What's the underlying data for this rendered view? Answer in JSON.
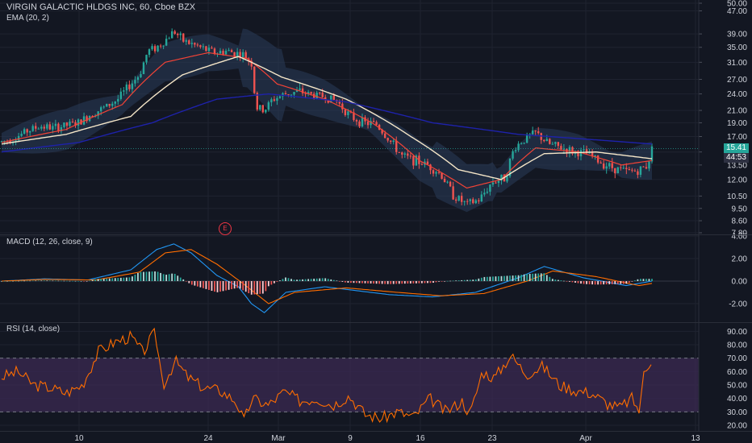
{
  "header": {
    "symbol_line": "VIRGIN GALACTIC HLDGS INC, 60, Cboe BZX",
    "ema_line": "EMA (20, 2)"
  },
  "macd_title": "MACD (12, 26, close, 9)",
  "rsi_title": "RSI (14, close)",
  "event_marker": "E",
  "last_price": {
    "value": "15.41",
    "countdown": "44:53"
  },
  "colors": {
    "background": "#131722",
    "up": "#26a69a",
    "down": "#ef5350",
    "ema_fast": "#f44336",
    "ema_slow": "#f5e6c8",
    "ema_long": "#1e22aa",
    "band_fill": "#2a3c5a",
    "macd_line": "#2196f3",
    "signal_line": "#ff6d00",
    "rsi_line": "#ff6d00",
    "rsi_band": "#3b2a52",
    "badge_price": "#26a69a",
    "badge_time": "#2e3142"
  },
  "chart_data": [
    {
      "type": "candlestick",
      "title": "VIRGIN GALACTIC HLDGS INC, 60, Cboe BZX",
      "scale": "log",
      "y_ticks": [
        "50.00",
        "47.00",
        "39.00",
        "35.00",
        "31.00",
        "27.00",
        "24.00",
        "21.00",
        "19.00",
        "17.00",
        "15.00",
        "13.50",
        "12.00",
        "10.50",
        "9.50",
        "8.60",
        "7.80"
      ],
      "x_ticks": [
        "10",
        "24",
        "Mar",
        "9",
        "16",
        "23",
        "Apr",
        "13"
      ],
      "ylim": [
        7.8,
        50
      ],
      "close_path": [
        {
          "x": 0,
          "y": 16.3
        },
        {
          "x": 3,
          "y": 16.8
        },
        {
          "x": 6,
          "y": 17.8
        },
        {
          "x": 9,
          "y": 18.5
        },
        {
          "x": 12,
          "y": 18.2
        },
        {
          "x": 15,
          "y": 18.6
        },
        {
          "x": 18,
          "y": 19.0
        },
        {
          "x": 21,
          "y": 20.5
        },
        {
          "x": 24,
          "y": 21.5
        },
        {
          "x": 27,
          "y": 23.0
        },
        {
          "x": 30,
          "y": 26.0
        },
        {
          "x": 32,
          "y": 28.0
        },
        {
          "x": 34,
          "y": 34.0
        },
        {
          "x": 36,
          "y": 35.0
        },
        {
          "x": 38,
          "y": 37.0
        },
        {
          "x": 40,
          "y": 40.0
        },
        {
          "x": 42,
          "y": 37.0
        },
        {
          "x": 44,
          "y": 36.0
        },
        {
          "x": 46,
          "y": 35.0
        },
        {
          "x": 48,
          "y": 34.0
        },
        {
          "x": 50,
          "y": 33.5
        },
        {
          "x": 52,
          "y": 34.0
        },
        {
          "x": 54,
          "y": 33.5
        },
        {
          "x": 56,
          "y": 33.0
        },
        {
          "x": 58,
          "y": 31.0
        },
        {
          "x": 59,
          "y": 21.5
        },
        {
          "x": 61,
          "y": 21.0
        },
        {
          "x": 63,
          "y": 23.0
        },
        {
          "x": 66,
          "y": 24.0
        },
        {
          "x": 69,
          "y": 24.5
        },
        {
          "x": 72,
          "y": 23.8
        },
        {
          "x": 75,
          "y": 23.5
        },
        {
          "x": 78,
          "y": 22.5
        },
        {
          "x": 81,
          "y": 20.0
        },
        {
          "x": 84,
          "y": 19.0
        },
        {
          "x": 87,
          "y": 18.8
        },
        {
          "x": 90,
          "y": 16.5
        },
        {
          "x": 93,
          "y": 14.5
        },
        {
          "x": 96,
          "y": 14.0
        },
        {
          "x": 99,
          "y": 13.5
        },
        {
          "x": 102,
          "y": 12.5
        },
        {
          "x": 105,
          "y": 10.5
        },
        {
          "x": 108,
          "y": 9.8
        },
        {
          "x": 111,
          "y": 10.2
        },
        {
          "x": 114,
          "y": 11.8
        },
        {
          "x": 117,
          "y": 12.2
        },
        {
          "x": 119,
          "y": 15.5
        },
        {
          "x": 121,
          "y": 16.5
        },
        {
          "x": 124,
          "y": 17.5
        },
        {
          "x": 127,
          "y": 16.0
        },
        {
          "x": 130,
          "y": 15.5
        },
        {
          "x": 133,
          "y": 15.0
        },
        {
          "x": 136,
          "y": 14.8
        },
        {
          "x": 139,
          "y": 13.8
        },
        {
          "x": 142,
          "y": 13.2
        },
        {
          "x": 145,
          "y": 12.8
        },
        {
          "x": 148,
          "y": 12.9
        },
        {
          "x": 150,
          "y": 13.5
        },
        {
          "x": 151,
          "y": 15.4
        }
      ],
      "series": [
        {
          "name": "EMA (20, 2)",
          "values": [
            {
              "x": 0,
              "y": 16.2
            },
            {
              "x": 15,
              "y": 18.0
            },
            {
              "x": 28,
              "y": 22.0
            },
            {
              "x": 38,
              "y": 31.0
            },
            {
              "x": 48,
              "y": 33.5
            },
            {
              "x": 57,
              "y": 32.0
            },
            {
              "x": 64,
              "y": 26.0
            },
            {
              "x": 75,
              "y": 23.0
            },
            {
              "x": 86,
              "y": 19.0
            },
            {
              "x": 97,
              "y": 14.0
            },
            {
              "x": 108,
              "y": 11.2
            },
            {
              "x": 116,
              "y": 12.0
            },
            {
              "x": 124,
              "y": 15.5
            },
            {
              "x": 134,
              "y": 15.0
            },
            {
              "x": 144,
              "y": 13.5
            },
            {
              "x": 151,
              "y": 14.0
            }
          ]
        },
        {
          "values": [
            {
              "x": 0,
              "y": 16.0
            },
            {
              "x": 15,
              "y": 17.3
            },
            {
              "x": 30,
              "y": 20.0
            },
            {
              "x": 42,
              "y": 28.0
            },
            {
              "x": 55,
              "y": 32.5
            },
            {
              "x": 65,
              "y": 27.5
            },
            {
              "x": 80,
              "y": 23.0
            },
            {
              "x": 95,
              "y": 17.0
            },
            {
              "x": 106,
              "y": 13.0
            },
            {
              "x": 116,
              "y": 12.0
            },
            {
              "x": 126,
              "y": 14.8
            },
            {
              "x": 138,
              "y": 15.0
            },
            {
              "x": 151,
              "y": 14.2
            }
          ]
        },
        {
          "values": [
            {
              "x": 0,
              "y": 15.0
            },
            {
              "x": 18,
              "y": 16.2
            },
            {
              "x": 35,
              "y": 19.0
            },
            {
              "x": 50,
              "y": 23.0
            },
            {
              "x": 62,
              "y": 24.0
            },
            {
              "x": 80,
              "y": 22.5
            },
            {
              "x": 100,
              "y": 19.0
            },
            {
              "x": 120,
              "y": 17.3
            },
            {
              "x": 151,
              "y": 16.0
            }
          ]
        }
      ]
    },
    {
      "type": "line",
      "title": "MACD (12, 26, close, 9)",
      "y_ticks": [
        "4.00",
        "2.00",
        "0.00",
        "-2.00"
      ],
      "ylim": [
        -3.5,
        4
      ],
      "series": [
        {
          "name": "MACD",
          "values": [
            {
              "x": 0,
              "y": 0
            },
            {
              "x": 10,
              "y": 0.2
            },
            {
              "x": 20,
              "y": 0.1
            },
            {
              "x": 30,
              "y": 1.0
            },
            {
              "x": 36,
              "y": 2.8
            },
            {
              "x": 40,
              "y": 3.3
            },
            {
              "x": 44,
              "y": 2.5
            },
            {
              "x": 50,
              "y": 0.5
            },
            {
              "x": 55,
              "y": -0.5
            },
            {
              "x": 58,
              "y": -2.0
            },
            {
              "x": 61,
              "y": -2.8
            },
            {
              "x": 66,
              "y": -1.0
            },
            {
              "x": 75,
              "y": -0.5
            },
            {
              "x": 90,
              "y": -1.2
            },
            {
              "x": 100,
              "y": -1.4
            },
            {
              "x": 110,
              "y": -1.0
            },
            {
              "x": 120,
              "y": 0.3
            },
            {
              "x": 126,
              "y": 1.3
            },
            {
              "x": 135,
              "y": 0.3
            },
            {
              "x": 145,
              "y": -0.4
            },
            {
              "x": 151,
              "y": 0.0
            }
          ]
        },
        {
          "name": "Signal",
          "values": [
            {
              "x": 0,
              "y": 0
            },
            {
              "x": 10,
              "y": 0.15
            },
            {
              "x": 22,
              "y": 0.1
            },
            {
              "x": 32,
              "y": 0.8
            },
            {
              "x": 38,
              "y": 2.5
            },
            {
              "x": 44,
              "y": 2.8
            },
            {
              "x": 50,
              "y": 1.5
            },
            {
              "x": 56,
              "y": -0.2
            },
            {
              "x": 62,
              "y": -2.0
            },
            {
              "x": 68,
              "y": -1.0
            },
            {
              "x": 80,
              "y": -0.6
            },
            {
              "x": 92,
              "y": -1.0
            },
            {
              "x": 102,
              "y": -1.3
            },
            {
              "x": 112,
              "y": -1.1
            },
            {
              "x": 122,
              "y": 0.0
            },
            {
              "x": 128,
              "y": 0.9
            },
            {
              "x": 138,
              "y": 0.4
            },
            {
              "x": 148,
              "y": -0.4
            },
            {
              "x": 151,
              "y": -0.2
            }
          ]
        }
      ]
    },
    {
      "type": "line",
      "title": "RSI (14, close)",
      "y_ticks": [
        "90.00",
        "80.00",
        "70.00",
        "60.00",
        "50.00",
        "40.00",
        "30.00",
        "20.00"
      ],
      "ylim": [
        17,
        95
      ],
      "band": [
        30,
        70
      ],
      "series": [
        {
          "name": "RSI",
          "values": [
            {
              "x": 0,
              "y": 56
            },
            {
              "x": 4,
              "y": 60
            },
            {
              "x": 8,
              "y": 50
            },
            {
              "x": 12,
              "y": 48
            },
            {
              "x": 16,
              "y": 44
            },
            {
              "x": 20,
              "y": 50
            },
            {
              "x": 24,
              "y": 75
            },
            {
              "x": 28,
              "y": 82
            },
            {
              "x": 32,
              "y": 86
            },
            {
              "x": 35,
              "y": 74
            },
            {
              "x": 38,
              "y": 90
            },
            {
              "x": 40,
              "y": 50
            },
            {
              "x": 43,
              "y": 68
            },
            {
              "x": 46,
              "y": 56
            },
            {
              "x": 50,
              "y": 48
            },
            {
              "x": 54,
              "y": 46
            },
            {
              "x": 58,
              "y": 38
            },
            {
              "x": 60,
              "y": 23
            },
            {
              "x": 62,
              "y": 40
            },
            {
              "x": 66,
              "y": 35
            },
            {
              "x": 70,
              "y": 45
            },
            {
              "x": 74,
              "y": 38
            },
            {
              "x": 78,
              "y": 40
            },
            {
              "x": 82,
              "y": 35
            },
            {
              "x": 86,
              "y": 42
            },
            {
              "x": 90,
              "y": 28
            },
            {
              "x": 94,
              "y": 25
            },
            {
              "x": 98,
              "y": 30
            },
            {
              "x": 102,
              "y": 26
            },
            {
              "x": 106,
              "y": 40
            },
            {
              "x": 110,
              "y": 30
            },
            {
              "x": 114,
              "y": 38
            },
            {
              "x": 116,
              "y": 28
            },
            {
              "x": 119,
              "y": 60
            },
            {
              "x": 122,
              "y": 55
            },
            {
              "x": 126,
              "y": 72
            },
            {
              "x": 130,
              "y": 58
            },
            {
              "x": 134,
              "y": 64
            },
            {
              "x": 138,
              "y": 50
            },
            {
              "x": 142,
              "y": 46
            },
            {
              "x": 146,
              "y": 44
            },
            {
              "x": 150,
              "y": 36
            },
            {
              "x": 153,
              "y": 33
            },
            {
              "x": 156,
              "y": 40
            },
            {
              "x": 158,
              "y": 30
            },
            {
              "x": 159,
              "y": 60
            },
            {
              "x": 161,
              "y": 70
            }
          ]
        }
      ]
    }
  ]
}
